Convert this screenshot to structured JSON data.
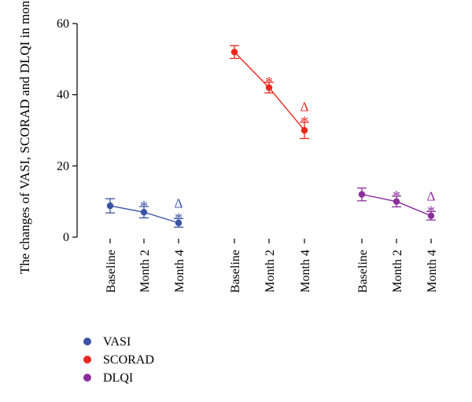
{
  "chart_data": {
    "type": "line",
    "ylabel": "The changes of VASI, SCORAD and DLQI in months",
    "ylim": [
      0,
      60
    ],
    "yticks": [
      0,
      20,
      40,
      60
    ],
    "grid": false,
    "legend_position": "bottom-left",
    "series": [
      {
        "name": "VASI",
        "color": "#3a54a4",
        "categories": [
          "Baseline",
          "Month 2",
          "Month 4"
        ],
        "values": [
          8.8,
          7.0,
          4.0
        ],
        "errors": [
          2.0,
          1.6,
          1.2
        ],
        "annotations": [
          {
            "index": 1,
            "labels": [
              "*"
            ]
          },
          {
            "index": 2,
            "labels": [
              "Δ",
              "*"
            ]
          }
        ]
      },
      {
        "name": "SCORAD",
        "color": "#e8281e",
        "categories": [
          "Baseline",
          "Month 2",
          "Month 4"
        ],
        "values": [
          52.0,
          42.0,
          30.0
        ],
        "errors": [
          1.8,
          1.5,
          2.3
        ],
        "annotations": [
          {
            "index": 1,
            "labels": [
              "*"
            ]
          },
          {
            "index": 2,
            "labels": [
              "Δ",
              "*"
            ]
          }
        ]
      },
      {
        "name": "DLQI",
        "color": "#8b2f9c",
        "categories": [
          "Baseline",
          "Month 2",
          "Month 4"
        ],
        "values": [
          12.0,
          10.0,
          6.0
        ],
        "errors": [
          1.8,
          1.5,
          1.2
        ],
        "annotations": [
          {
            "index": 1,
            "labels": [
              "*"
            ]
          },
          {
            "index": 2,
            "labels": [
              "Δ",
              "*"
            ]
          }
        ]
      }
    ]
  }
}
